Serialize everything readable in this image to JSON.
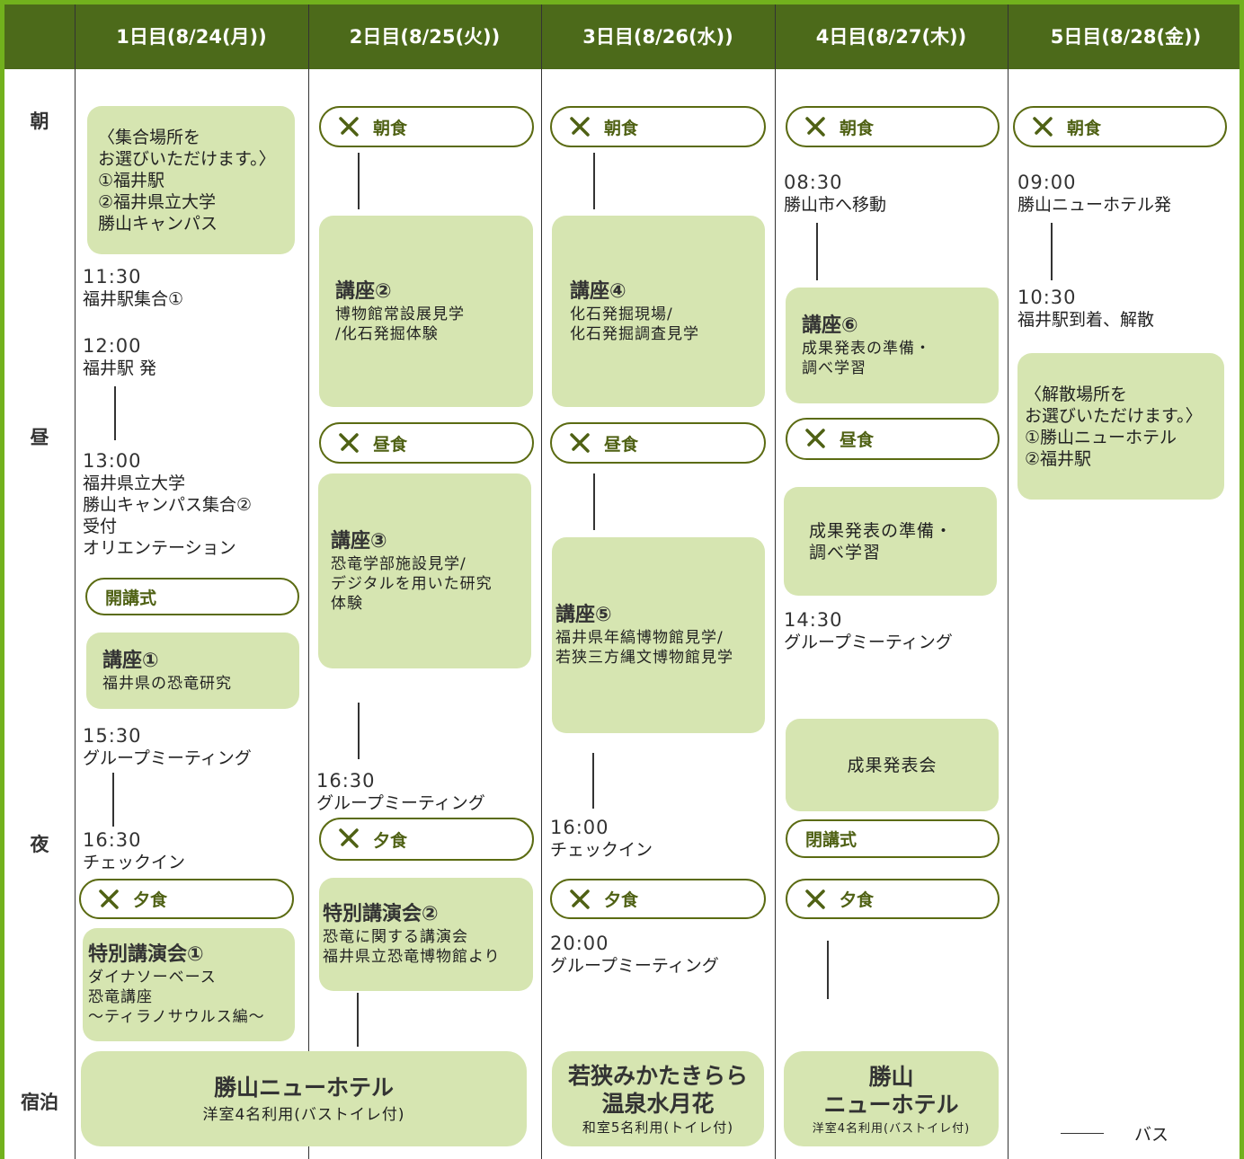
{
  "periods": [
    "朝",
    "昼",
    "夜",
    "宿泊"
  ],
  "legend": {
    "label": "バス"
  },
  "days": [
    {
      "header": "1日目(8/24(月))",
      "items": [
        {
          "text": "〈集合場所を\nお選びいただけます。〉\n①福井駅\n②福井県立大学\n勝山キャンパス"
        },
        {
          "time": "11:30",
          "text": "福井駅集合①"
        },
        {
          "time": "12:00",
          "text": "福井駅 発"
        },
        {
          "time": "13:00",
          "text": "福井県立大学\n勝山キャンパス集合②\n受付\nオリエンテーション"
        },
        {
          "label": "開講式"
        },
        {
          "title": "講座①",
          "text": "福井県の恐竜研究"
        },
        {
          "time": "15:30",
          "text": "グループミーティング"
        },
        {
          "time": "16:30",
          "text": "チェックイン"
        },
        {
          "label": "夕食"
        },
        {
          "title": "特別講演会①",
          "text": "ダイナソーベース\n恐竜講座\n～ティラノサウルス編～"
        },
        {
          "title": "勝山ニューホテル",
          "text": "洋室4名利用(バストイレ付)"
        }
      ]
    },
    {
      "header": "2日目(8/25(火))",
      "items": [
        {
          "label": "朝食"
        },
        {
          "title": "講座②",
          "text": "博物館常設展見学\n/化石発掘体験"
        },
        {
          "label": "昼食"
        },
        {
          "title": "講座③",
          "text": "恐竜学部施設見学/\nデジタルを用いた研究\n体験"
        },
        {
          "time": "16:30",
          "text": "グループミーティング"
        },
        {
          "label": "夕食"
        },
        {
          "title": "特別講演会②",
          "text": "恐竜に関する講演会\n福井県立恐竜博物館より"
        }
      ]
    },
    {
      "header": "3日目(8/26(水))",
      "items": [
        {
          "label": "朝食"
        },
        {
          "title": "講座④",
          "text": "化石発掘現場/\n化石発掘調査見学"
        },
        {
          "label": "昼食"
        },
        {
          "title": "講座⑤",
          "text": "福井県年縞博物館見学/\n若狭三方縄文博物館見学"
        },
        {
          "time": "16:00",
          "text": "チェックイン"
        },
        {
          "label": "夕食"
        },
        {
          "time": "20:00",
          "text": "グループミーティング"
        },
        {
          "title": "若狭みかたきらら\n温泉水月花",
          "text": "和室5名利用(トイレ付)"
        }
      ]
    },
    {
      "header": "4日目(8/27(木))",
      "items": [
        {
          "label": "朝食"
        },
        {
          "time": "08:30",
          "text": "勝山市へ移動"
        },
        {
          "title": "講座⑥",
          "text": "成果発表の準備・\n調べ学習"
        },
        {
          "label": "昼食"
        },
        {
          "text": "成果発表の準備・\n調べ学習"
        },
        {
          "time": "14:30",
          "text": "グループミーティング"
        },
        {
          "text": "成果発表会"
        },
        {
          "label": "閉講式"
        },
        {
          "label": "夕食"
        },
        {
          "title": "勝山\nニューホテル",
          "text": "洋室4名利用(バストイレ付)"
        }
      ]
    },
    {
      "header": "5日目(8/28(金))",
      "items": [
        {
          "label": "朝食"
        },
        {
          "time": "09:00",
          "text": "勝山ニューホテル発"
        },
        {
          "time": "10:30",
          "text": "福井駅到着、解散"
        },
        {
          "text": "〈解散場所を\nお選びいただけます。〉\n①勝山ニューホテル\n②福井駅"
        }
      ]
    }
  ]
}
